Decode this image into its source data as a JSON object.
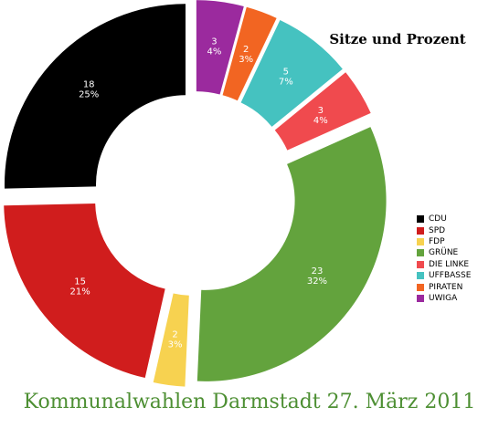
{
  "chart_data": {
    "type": "pie",
    "variant": "donut",
    "subtitle": "Sitze und Prozent",
    "title": "Kommunalwahlen Darmstadt 27. März 2011",
    "legend_position": "right",
    "start_angle_deg": 0,
    "direction": "clockwise",
    "slices": [
      {
        "name": "UWIGA",
        "seats": 3,
        "seats_label": "3",
        "percent_label": "4%",
        "color": "#9B2A9E"
      },
      {
        "name": "PIRATEN",
        "seats": 2,
        "seats_label": "2",
        "percent_label": "3%",
        "color": "#F26522"
      },
      {
        "name": "UFFBASSE",
        "seats": 5,
        "seats_label": "5",
        "percent_label": "7%",
        "color": "#45C2C0"
      },
      {
        "name": "DIE LINKE",
        "seats": 3,
        "seats_label": "3",
        "percent_label": "4%",
        "color": "#F04A4E"
      },
      {
        "name": "GRÜNE",
        "seats": 23,
        "seats_label": "23",
        "percent_label": "32%",
        "color": "#63A33D"
      },
      {
        "name": "FDP",
        "seats": 2,
        "seats_label": "2",
        "percent_label": "3%",
        "color": "#F7D250"
      },
      {
        "name": "SPD",
        "seats": 15,
        "seats_label": "15",
        "percent_label": "21%",
        "color": "#D01D1D"
      },
      {
        "name": "CDU",
        "seats": 18,
        "seats_label": "18",
        "percent_label": "25%",
        "color": "#000000"
      }
    ],
    "legend_order": [
      "CDU",
      "SPD",
      "FDP",
      "GRÜNE",
      "DIE LINKE",
      "UFFBASSE",
      "PIRATEN",
      "UWIGA"
    ]
  }
}
